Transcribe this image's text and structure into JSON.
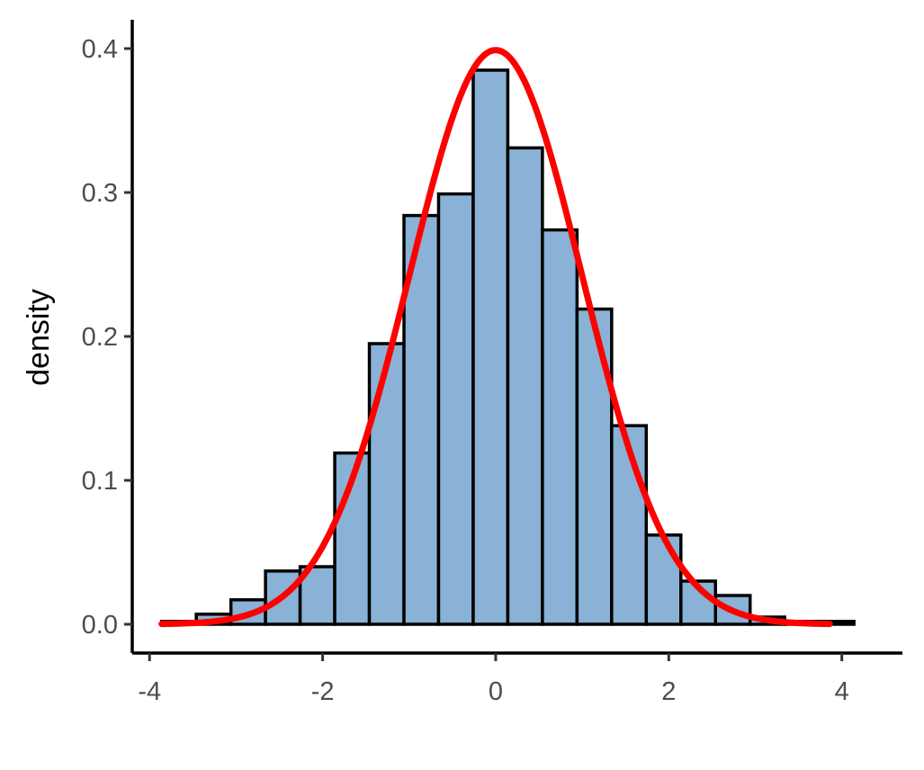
{
  "chart_data": {
    "type": "bar",
    "subtype": "histogram",
    "title": "",
    "xlabel": "",
    "ylabel": "density",
    "xlim": [
      -4.2,
      4.7
    ],
    "ylim": [
      -0.02,
      0.42
    ],
    "x_ticks": [
      -4,
      -2,
      0,
      2,
      4
    ],
    "x_tick_labels": [
      "-4",
      "-2",
      "0",
      "2",
      "4"
    ],
    "y_ticks": [
      0.0,
      0.1,
      0.2,
      0.3,
      0.4
    ],
    "y_tick_labels": [
      "0.0",
      "0.1",
      "0.2",
      "0.3",
      "0.4"
    ],
    "grid": false,
    "legend": "none",
    "bins": [
      {
        "x0": -3.86,
        "x1": -3.46,
        "density": 0.002
      },
      {
        "x0": -3.46,
        "x1": -3.06,
        "density": 0.007
      },
      {
        "x0": -3.06,
        "x1": -2.66,
        "density": 0.017
      },
      {
        "x0": -2.66,
        "x1": -2.26,
        "density": 0.037
      },
      {
        "x0": -2.26,
        "x1": -1.86,
        "density": 0.04
      },
      {
        "x0": -1.86,
        "x1": -1.46,
        "density": 0.119
      },
      {
        "x0": -1.46,
        "x1": -1.06,
        "density": 0.195
      },
      {
        "x0": -1.06,
        "x1": -0.66,
        "density": 0.284
      },
      {
        "x0": -0.66,
        "x1": -0.26,
        "density": 0.299
      },
      {
        "x0": -0.26,
        "x1": 0.14,
        "density": 0.385
      },
      {
        "x0": 0.14,
        "x1": 0.54,
        "density": 0.331
      },
      {
        "x0": 0.54,
        "x1": 0.94,
        "density": 0.274
      },
      {
        "x0": 0.94,
        "x1": 1.34,
        "density": 0.219
      },
      {
        "x0": 1.34,
        "x1": 1.74,
        "density": 0.138
      },
      {
        "x0": 1.74,
        "x1": 2.14,
        "density": 0.062
      },
      {
        "x0": 2.14,
        "x1": 2.54,
        "density": 0.03
      },
      {
        "x0": 2.54,
        "x1": 2.94,
        "density": 0.02
      },
      {
        "x0": 2.94,
        "x1": 3.34,
        "density": 0.005
      },
      {
        "x0": 3.34,
        "x1": 3.74,
        "density": 0.002
      },
      {
        "x0": 3.74,
        "x1": 4.14,
        "density": 0.002
      }
    ],
    "curve": {
      "type": "normal-density",
      "mean": 0,
      "sd": 1,
      "x_range": [
        -3.86,
        3.86
      ]
    },
    "colors": {
      "bar_fill": "#89b2d6",
      "bar_stroke": "#000000",
      "curve": "#ff0000",
      "axis": "#000000",
      "tick_label": "#4d4d4d"
    }
  }
}
